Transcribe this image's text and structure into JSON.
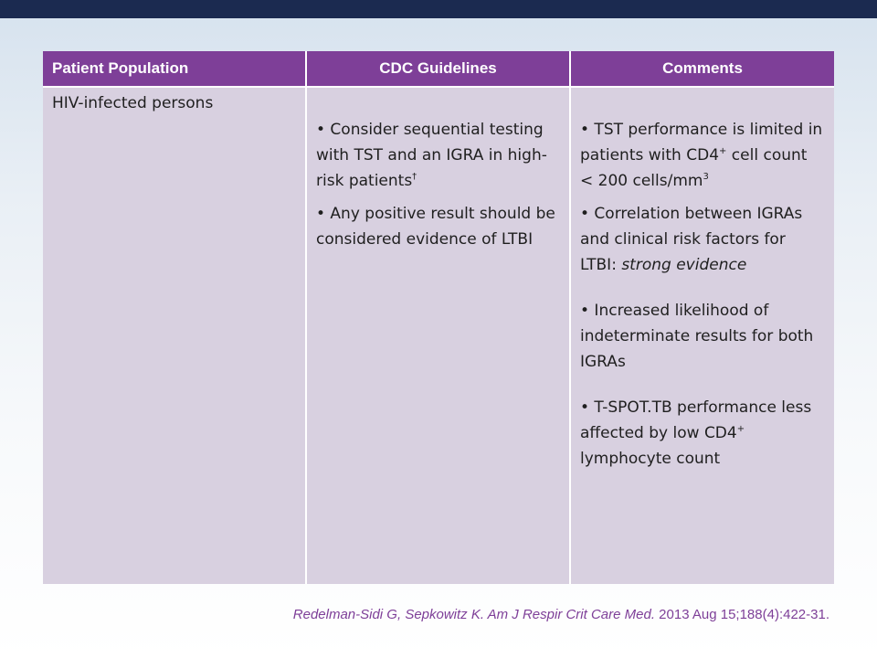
{
  "table": {
    "headers": [
      "Patient Population",
      "CDC Guidelines",
      "Comments"
    ],
    "population": "HIV-infected persons",
    "guidelines": [
      {
        "text": "• Consider sequential testing with TST and an IGRA in high-risk patients",
        "sup": "†"
      },
      {
        "text": "• Any positive result should be considered evidence of LTBI"
      }
    ],
    "comments": {
      "c1_text": "• TST performance is limited in patients with CD4",
      "c1_sup": "+",
      "c1_text2": " cell count < 200 cells/mm",
      "c1_sup2": "3",
      "c2_text": "• Correlation between IGRAs and clinical risk factors for LTBI: ",
      "c2_italic": "strong evidence",
      "c3_text": "• Increased likelihood of indeterminate results for both IGRAs",
      "c4_text": "• T-SPOT.TB performance less affected by low CD4",
      "c4_sup": "+",
      "c4_text2": " lymphocyte count"
    }
  },
  "citation": {
    "italic_part": "Redelman-Sidi G, Sepkowitz K. Am J Respir Crit Care Med.",
    "normal_part": " 2013 Aug 15;188(4):422-31."
  }
}
